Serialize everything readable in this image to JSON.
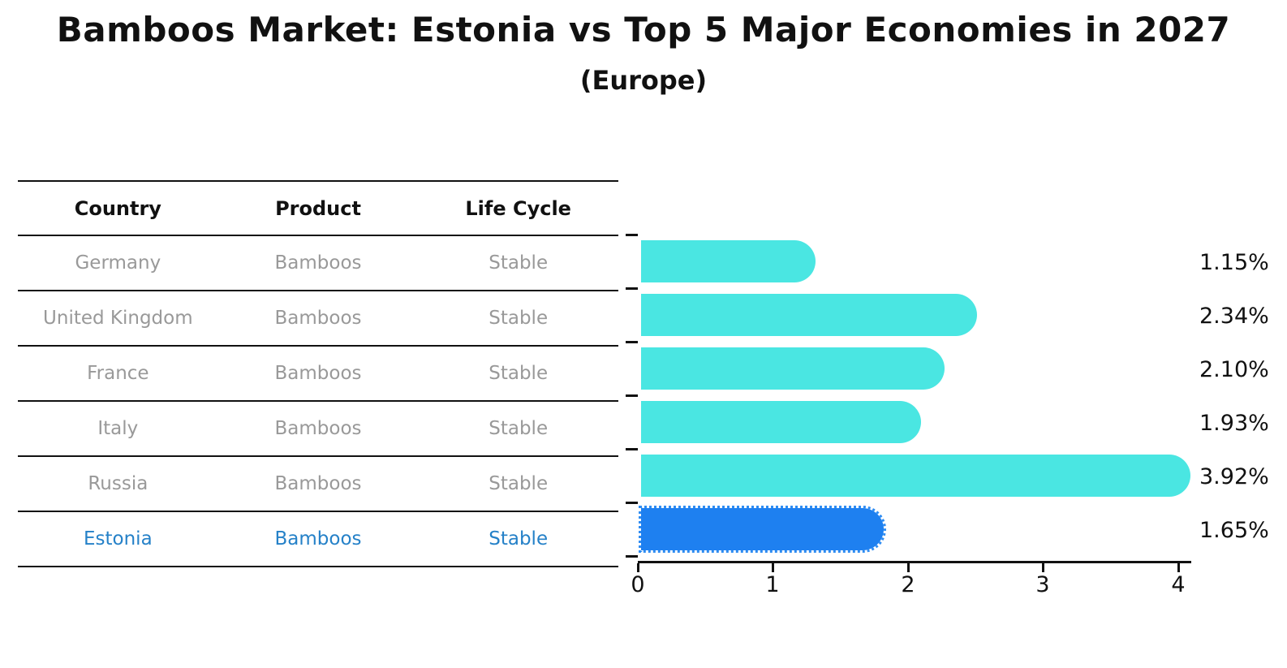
{
  "title": "Bamboos Market: Estonia vs Top 5 Major Economies in 2027",
  "subtitle": "(Europe)",
  "table": {
    "headers": [
      "Country",
      "Product",
      "Life Cycle"
    ],
    "rows": [
      {
        "country": "Germany",
        "product": "Bamboos",
        "life_cycle": "Stable"
      },
      {
        "country": "United Kingdom",
        "product": "Bamboos",
        "life_cycle": "Stable"
      },
      {
        "country": "France",
        "product": "Bamboos",
        "life_cycle": "Stable"
      },
      {
        "country": "Italy",
        "product": "Bamboos",
        "life_cycle": "Stable"
      },
      {
        "country": "Russia",
        "product": "Bamboos",
        "life_cycle": "Stable"
      },
      {
        "country": "Estonia",
        "product": "Bamboos",
        "life_cycle": "Stable"
      }
    ]
  },
  "chart_data": {
    "type": "bar",
    "orientation": "horizontal",
    "title": "Bamboos Market: Estonia vs Top 5 Major Economies in 2027",
    "subtitle": "(Europe)",
    "categories": [
      "Germany",
      "United Kingdom",
      "France",
      "Italy",
      "Russia",
      "Estonia"
    ],
    "values": [
      1.15,
      2.34,
      2.1,
      1.93,
      3.92,
      1.65
    ],
    "value_labels": [
      "1.15%",
      "2.34%",
      "2.10%",
      "1.93%",
      "3.92%",
      "1.65%"
    ],
    "unit": "%",
    "highlight_category": "Estonia",
    "xlim": [
      0,
      4.1
    ],
    "x_tick_labels": [
      "0",
      "1",
      "2",
      "3",
      "4"
    ],
    "grid": false,
    "legend": false
  },
  "colors": {
    "background": "#ffffff",
    "bar": "#4ae6e2",
    "highlight_bar": "#1e80f0",
    "highlight_edge": "#2e8cf2",
    "highlight_text": "#2581c8",
    "row_text": "#999999",
    "header_text": "#111111",
    "axis": "#111111"
  }
}
